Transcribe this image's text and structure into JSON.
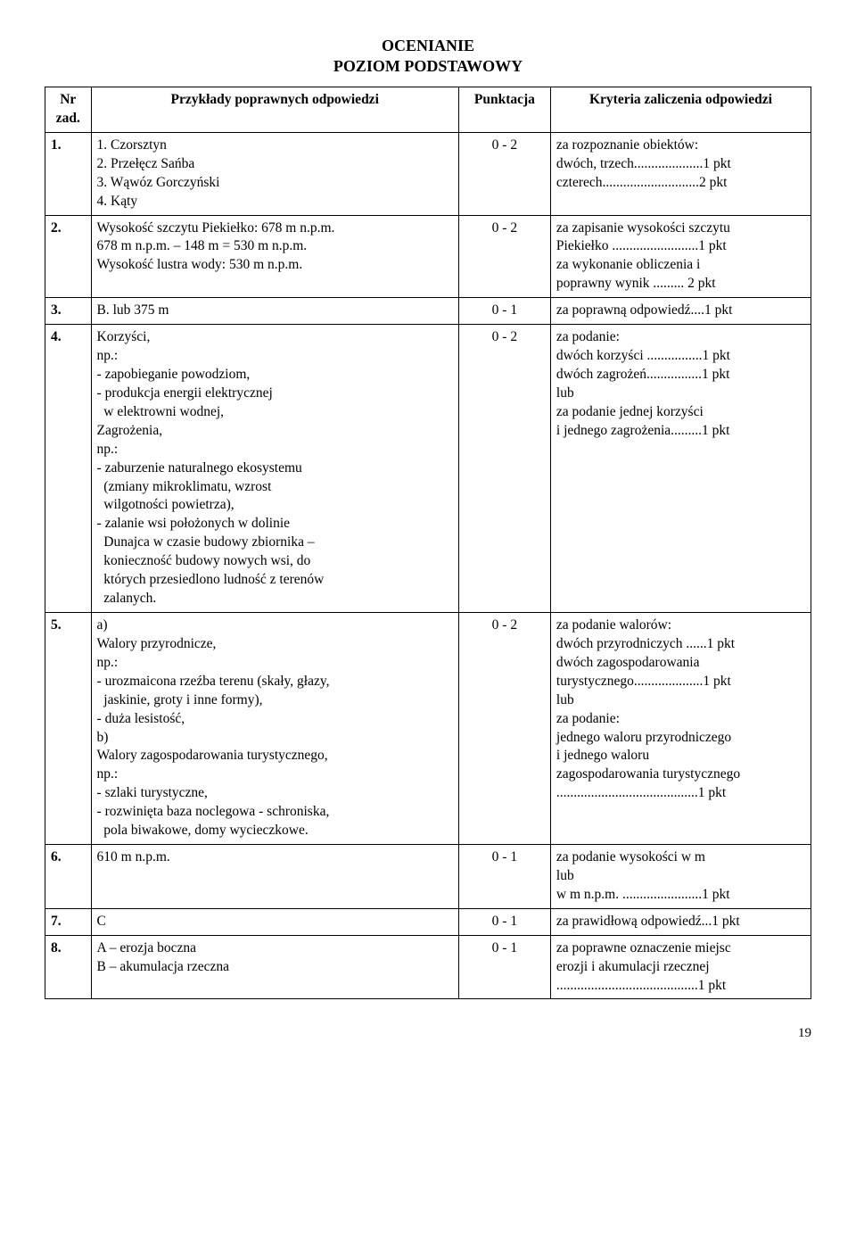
{
  "title_line1": "OCENIANIE",
  "title_line2": "POZIOM PODSTAWOWY",
  "headers": {
    "num": "Nr\nzad.",
    "ans": "Przykłady poprawnych odpowiedzi",
    "pts": "Punktacja",
    "crit": "Kryteria zaliczenia odpowiedzi"
  },
  "rows": [
    {
      "num": "1.",
      "ans": "1. Czorsztyn\n2. Przełęcz Sańba\n3. Wąwóz Gorczyński\n4. Kąty",
      "pts": "0 - 2",
      "crit": "za rozpoznanie obiektów:\ndwóch, trzech....................1 pkt\nczterech............................2 pkt"
    },
    {
      "num": "2.",
      "ans": "Wysokość szczytu Piekiełko: 678 m n.p.m.\n678 m n.p.m. – 148 m = 530 m n.p.m.\nWysokość lustra wody: 530 m n.p.m.",
      "pts": "0 - 2",
      "crit": "za zapisanie wysokości szczytu\nPiekiełko .........................1 pkt\nza wykonanie obliczenia i\npoprawny wynik ......... 2 pkt"
    },
    {
      "num": "3.",
      "ans": "B. lub 375 m",
      "pts": "0 - 1",
      "crit": "za poprawną odpowiedź....1 pkt"
    },
    {
      "num": "4.",
      "ans": "Korzyści,\nnp.:\n- zapobieganie powodziom,\n- produkcja energii elektrycznej\n  w elektrowni wodnej,\nZagrożenia,\nnp.:\n- zaburzenie naturalnego ekosystemu\n  (zmiany mikroklimatu, wzrost\n  wilgotności powietrza),\n- zalanie wsi położonych w dolinie\n  Dunajca w czasie budowy zbiornika –\n  konieczność budowy nowych wsi, do\n  których przesiedlono ludność z terenów\n  zalanych.",
      "pts": "0 - 2",
      "crit": "za podanie:\ndwóch korzyści ................1 pkt\ndwóch zagrożeń................1 pkt\nlub\nza podanie jednej korzyści\ni jednego zagrożenia.........1 pkt"
    },
    {
      "num": "5.",
      "ans": "a)\nWalory przyrodnicze,\nnp.:\n- urozmaicona rzeźba terenu (skały, głazy,\n  jaskinie, groty i inne formy),\n- duża lesistość,\nb)\nWalory zagospodarowania turystycznego,\nnp.:\n- szlaki turystyczne,\n- rozwinięta baza noclegowa - schroniska,\n  pola biwakowe, domy wycieczkowe.",
      "pts": "0 - 2",
      "crit": "za podanie walorów:\ndwóch przyrodniczych ......1 pkt\ndwóch zagospodarowania\nturystycznego....................1 pkt\nlub\nza podanie:\njednego waloru przyrodniczego\ni jednego waloru\nzagospodarowania turystycznego\n.........................................1 pkt"
    },
    {
      "num": "6.",
      "ans": "610 m n.p.m.",
      "pts": "0 - 1",
      "crit": "za podanie wysokości w m\nlub\nw m n.p.m. .......................1 pkt"
    },
    {
      "num": "7.",
      "ans": "C",
      "pts": "0 - 1",
      "crit": "za prawidłową odpowiedź...1 pkt"
    },
    {
      "num": "8.",
      "ans": "A – erozja boczna\nB – akumulacja rzeczna",
      "pts": "0 - 1",
      "crit": "za poprawne oznaczenie miejsc\nerozji i akumulacji rzecznej\n.........................................1 pkt"
    }
  ],
  "page_number": "19",
  "style": {
    "background": "#ffffff",
    "text_color": "#000000",
    "border_color": "#000000",
    "font_family": "Times New Roman",
    "title_fontsize_pt": 18,
    "body_fontsize_pt": 15.5,
    "col_widths_pct": [
      6,
      48,
      12,
      34
    ]
  }
}
